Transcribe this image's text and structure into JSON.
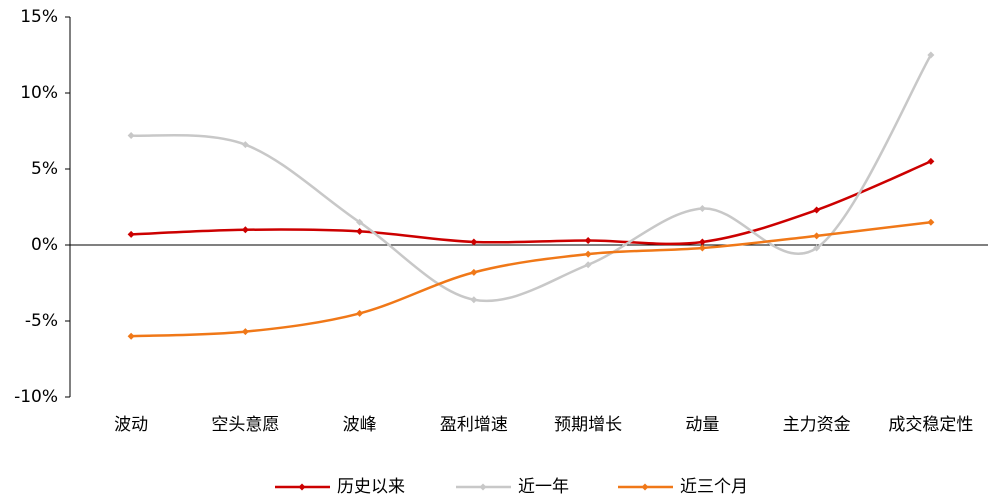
{
  "chart_data": {
    "type": "line",
    "smooth": true,
    "categories": [
      "波动",
      "空头意愿",
      "波峰",
      "盈利增速",
      "预期增长",
      "动量",
      "主力资金",
      "成交稳定性"
    ],
    "series": [
      {
        "name": "历史以来",
        "color": "#cc0000",
        "values": [
          0.7,
          1.0,
          0.9,
          0.2,
          0.3,
          0.2,
          2.3,
          5.5
        ]
      },
      {
        "name": "近一年",
        "color": "#c8c8c8",
        "values": [
          7.2,
          6.6,
          1.5,
          -3.6,
          -1.3,
          2.4,
          -0.2,
          12.5
        ]
      },
      {
        "name": "近三个月",
        "color": "#f07818",
        "values": [
          -6.0,
          -5.7,
          -4.5,
          -1.8,
          -0.6,
          -0.2,
          0.6,
          1.5
        ]
      }
    ],
    "ylim": [
      -10,
      15
    ],
    "yticks": [
      {
        "value": -10,
        "label": "-10%"
      },
      {
        "value": -5,
        "label": "-5%"
      },
      {
        "value": 0,
        "label": "0%"
      },
      {
        "value": 5,
        "label": "5%"
      },
      {
        "value": 10,
        "label": "10%"
      },
      {
        "value": 15,
        "label": "15%"
      }
    ],
    "grid": false,
    "legend": "bottom"
  }
}
